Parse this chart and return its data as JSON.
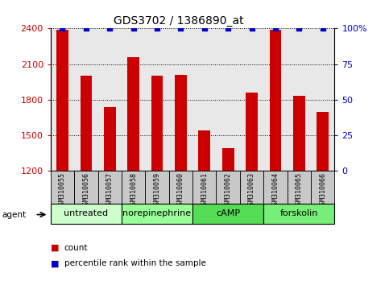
{
  "title": "GDS3702 / 1386890_at",
  "samples": [
    "GSM310055",
    "GSM310056",
    "GSM310057",
    "GSM310058",
    "GSM310059",
    "GSM310060",
    "GSM310061",
    "GSM310062",
    "GSM310063",
    "GSM310064",
    "GSM310065",
    "GSM310066"
  ],
  "counts": [
    2390,
    2000,
    1740,
    2160,
    2000,
    2010,
    1540,
    1390,
    1860,
    2390,
    1830,
    1700
  ],
  "percentile": [
    100,
    100,
    100,
    100,
    100,
    100,
    100,
    100,
    100,
    100,
    100,
    100
  ],
  "ylim_left": [
    1200,
    2400
  ],
  "ylim_right": [
    0,
    100
  ],
  "yticks_left": [
    1200,
    1500,
    1800,
    2100,
    2400
  ],
  "yticks_right": [
    0,
    25,
    50,
    75,
    100
  ],
  "bar_color": "#cc0000",
  "dot_color": "#0000cc",
  "bar_width": 0.5,
  "agents": [
    {
      "label": "untreated",
      "start": 0,
      "end": 3,
      "color": "#ccffcc"
    },
    {
      "label": "norepinephrine",
      "start": 3,
      "end": 6,
      "color": "#99ff99"
    },
    {
      "label": "cAMP",
      "start": 6,
      "end": 9,
      "color": "#55dd55"
    },
    {
      "label": "forskolin",
      "start": 9,
      "end": 12,
      "color": "#77ee77"
    }
  ],
  "legend_count_color": "#cc0000",
  "legend_pct_color": "#0000cc",
  "bg_color": "#ffffff",
  "plot_bg_color": "#e8e8e8",
  "sample_box_color": "#c8c8c8",
  "ylabel_left_color": "#cc0000",
  "ylabel_right_color": "#0000cc",
  "grid_color": "#000000"
}
